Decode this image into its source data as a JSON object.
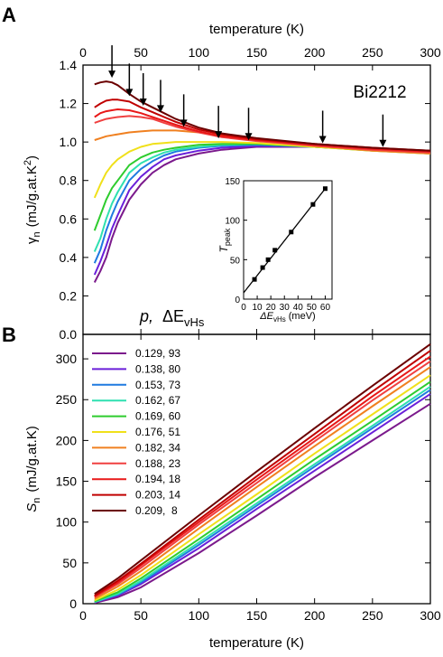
{
  "panels": {
    "a_label": "A",
    "b_label": "B"
  },
  "chart_data": [
    {
      "type": "line",
      "panel": "A",
      "xlabel": "temperature (K)",
      "ylabel_main": "γ",
      "ylabel_sub": "n",
      "ylabel_rest": "(mJ/g.at.K",
      "ylabel_sup": "2",
      "ylabel_end": ")",
      "xlim": [
        0,
        300
      ],
      "ylim": [
        0,
        1.4
      ],
      "xticks": [
        "0",
        "50",
        "100",
        "150",
        "200",
        "250",
        "300"
      ],
      "yticks": [
        "0.0",
        "0.2",
        "0.4",
        "0.6",
        "0.8",
        "1.0",
        "1.2",
        "1.4"
      ],
      "annotation": "Bi2212",
      "legend_title_p": "p,",
      "legend_title_delta": "ΔE",
      "legend_title_sub": "vHs",
      "peak_arrows_x": [
        25,
        40,
        52,
        67,
        87,
        117,
        143,
        207,
        259
      ],
      "series": [
        {
          "p": 0.129,
          "dE": 93,
          "color": "#7b1a8c",
          "x": [
            10,
            15,
            20,
            25,
            30,
            40,
            50,
            60,
            70,
            80,
            100,
            120,
            150,
            200,
            250,
            300
          ],
          "y": [
            0.27,
            0.33,
            0.4,
            0.5,
            0.58,
            0.7,
            0.78,
            0.84,
            0.88,
            0.91,
            0.94,
            0.96,
            0.975,
            0.975,
            0.96,
            0.955
          ]
        },
        {
          "p": 0.138,
          "dE": 80,
          "color": "#6a1fd9",
          "x": [
            10,
            15,
            20,
            25,
            30,
            40,
            50,
            60,
            70,
            80,
            100,
            120,
            150,
            200,
            250,
            300
          ],
          "y": [
            0.31,
            0.38,
            0.46,
            0.55,
            0.62,
            0.75,
            0.82,
            0.87,
            0.91,
            0.93,
            0.955,
            0.97,
            0.98,
            0.975,
            0.96,
            0.95
          ]
        },
        {
          "p": 0.153,
          "dE": 73,
          "color": "#1f7ae0",
          "x": [
            10,
            15,
            20,
            25,
            30,
            40,
            50,
            60,
            70,
            80,
            100,
            120,
            150,
            200,
            250,
            300
          ],
          "y": [
            0.37,
            0.44,
            0.54,
            0.62,
            0.69,
            0.8,
            0.86,
            0.9,
            0.93,
            0.95,
            0.97,
            0.98,
            0.985,
            0.975,
            0.96,
            0.945
          ]
        },
        {
          "p": 0.162,
          "dE": 67,
          "color": "#2ee0b0",
          "x": [
            10,
            15,
            20,
            25,
            30,
            40,
            50,
            60,
            70,
            80,
            100,
            120,
            150,
            200,
            250,
            300
          ],
          "y": [
            0.43,
            0.5,
            0.6,
            0.68,
            0.74,
            0.84,
            0.89,
            0.92,
            0.945,
            0.96,
            0.975,
            0.985,
            0.99,
            0.975,
            0.96,
            0.945
          ]
        },
        {
          "p": 0.169,
          "dE": 60,
          "color": "#2ecc2e",
          "x": [
            10,
            15,
            20,
            25,
            30,
            40,
            50,
            60,
            70,
            80,
            100,
            120,
            150,
            200,
            250,
            300
          ],
          "y": [
            0.54,
            0.62,
            0.7,
            0.76,
            0.8,
            0.88,
            0.92,
            0.945,
            0.96,
            0.97,
            0.985,
            0.99,
            0.99,
            0.975,
            0.955,
            0.94
          ]
        },
        {
          "p": 0.176,
          "dE": 51,
          "color": "#f0e01a",
          "x": [
            10,
            15,
            20,
            25,
            30,
            40,
            50,
            60,
            70,
            80,
            100,
            120,
            150,
            200,
            250,
            300
          ],
          "y": [
            0.71,
            0.78,
            0.84,
            0.88,
            0.91,
            0.95,
            0.975,
            0.99,
            0.995,
            1.0,
            1.0,
            1.0,
            0.995,
            0.975,
            0.955,
            0.94
          ]
        },
        {
          "p": 0.182,
          "dE": 34,
          "color": "#f08020",
          "x": [
            10,
            15,
            20,
            25,
            30,
            40,
            50,
            60,
            70,
            80,
            100,
            120,
            150,
            200,
            250,
            300
          ],
          "y": [
            1.01,
            1.02,
            1.03,
            1.035,
            1.04,
            1.05,
            1.055,
            1.06,
            1.06,
            1.06,
            1.05,
            1.035,
            1.01,
            0.98,
            0.955,
            0.94
          ]
        },
        {
          "p": 0.188,
          "dE": 23,
          "color": "#f04040",
          "x": [
            10,
            15,
            20,
            25,
            30,
            40,
            50,
            60,
            70,
            80,
            100,
            120,
            150,
            200,
            250,
            300
          ],
          "y": [
            1.1,
            1.11,
            1.12,
            1.125,
            1.13,
            1.135,
            1.13,
            1.12,
            1.1,
            1.08,
            1.05,
            1.025,
            1.005,
            0.98,
            0.96,
            0.945
          ]
        },
        {
          "p": 0.194,
          "dE": 18,
          "color": "#e81818",
          "x": [
            10,
            15,
            20,
            25,
            30,
            40,
            50,
            60,
            70,
            80,
            100,
            120,
            150,
            200,
            250,
            300
          ],
          "y": [
            1.13,
            1.15,
            1.16,
            1.165,
            1.17,
            1.165,
            1.15,
            1.13,
            1.11,
            1.09,
            1.055,
            1.03,
            1.01,
            0.985,
            0.965,
            0.95
          ]
        },
        {
          "p": 0.203,
          "dE": 14,
          "color": "#c00000",
          "x": [
            10,
            15,
            20,
            25,
            30,
            40,
            50,
            60,
            70,
            80,
            100,
            120,
            150,
            200,
            250,
            300
          ],
          "y": [
            1.18,
            1.2,
            1.215,
            1.22,
            1.22,
            1.21,
            1.18,
            1.155,
            1.13,
            1.105,
            1.065,
            1.04,
            1.015,
            0.99,
            0.97,
            0.955
          ]
        },
        {
          "p": 0.209,
          "dE": 8,
          "color": "#6b0000",
          "x": [
            10,
            15,
            20,
            25,
            30,
            40,
            50,
            60,
            70,
            80,
            100,
            120,
            150,
            200,
            250,
            300
          ],
          "y": [
            1.3,
            1.31,
            1.315,
            1.31,
            1.295,
            1.25,
            1.21,
            1.18,
            1.15,
            1.12,
            1.075,
            1.045,
            1.02,
            0.99,
            0.97,
            0.955
          ]
        }
      ]
    },
    {
      "type": "scatter",
      "panel": "A-inset",
      "xlabel_main": "ΔE",
      "xlabel_sub": "vHs",
      "xlabel_unit": "(meV)",
      "ylabel_main": "T",
      "ylabel_sub": "peak",
      "xlim": [
        0,
        65
      ],
      "ylim": [
        0,
        150
      ],
      "xticks": [
        "0",
        "10",
        "20",
        "30",
        "40",
        "50",
        "60"
      ],
      "yticks": [
        "0",
        "50",
        "100",
        "150"
      ],
      "points": [
        {
          "x": 8,
          "y": 25
        },
        {
          "x": 14,
          "y": 40
        },
        {
          "x": 18,
          "y": 50
        },
        {
          "x": 23,
          "y": 62
        },
        {
          "x": 35,
          "y": 85
        },
        {
          "x": 51,
          "y": 120
        },
        {
          "x": 60,
          "y": 140
        }
      ],
      "fit_line": [
        [
          0,
          8
        ],
        [
          60,
          140
        ]
      ]
    },
    {
      "type": "line",
      "panel": "B",
      "xlabel": "temperature (K)",
      "ylabel_main": "S",
      "ylabel_sub": "n",
      "ylabel_rest": "(mJ/g.at.K)",
      "xlim": [
        0,
        300
      ],
      "ylim": [
        0,
        330
      ],
      "xticks": [
        "0",
        "50",
        "100",
        "150",
        "200",
        "250",
        "300"
      ],
      "yticks": [
        "0",
        "50",
        "100",
        "150",
        "200",
        "250",
        "300"
      ],
      "legend": [
        {
          "label": "0.129, 93",
          "color": "#7b1a8c"
        },
        {
          "label": "0.138, 80",
          "color": "#6a1fd9"
        },
        {
          "label": "0.153, 73",
          "color": "#1f7ae0"
        },
        {
          "label": "0.162, 67",
          "color": "#2ee0b0"
        },
        {
          "label": "0.169, 60",
          "color": "#2ecc2e"
        },
        {
          "label": "0.176, 51",
          "color": "#f0e01a"
        },
        {
          "label": "0.182, 34",
          "color": "#f08020"
        },
        {
          "label": "0.188, 23",
          "color": "#f04040"
        },
        {
          "label": "0.194, 18",
          "color": "#e81818"
        },
        {
          "label": "0.203, 14",
          "color": "#c00000"
        },
        {
          "label": "0.209,  8",
          "color": "#6b0000"
        }
      ],
      "series": [
        {
          "color": "#7b1a8c",
          "x": [
            10,
            30,
            50,
            100,
            150,
            200,
            250,
            300
          ],
          "y": [
            1,
            8,
            20,
            62,
            108,
            155,
            200,
            245
          ]
        },
        {
          "color": "#6a1fd9",
          "x": [
            10,
            30,
            50,
            100,
            150,
            200,
            250,
            300
          ],
          "y": [
            2,
            10,
            24,
            68,
            116,
            163,
            210,
            257
          ]
        },
        {
          "color": "#1f7ae0",
          "x": [
            10,
            30,
            50,
            100,
            150,
            200,
            250,
            300
          ],
          "y": [
            2,
            11,
            26,
            72,
            120,
            168,
            215,
            262
          ]
        },
        {
          "color": "#2ee0b0",
          "x": [
            10,
            30,
            50,
            100,
            150,
            200,
            250,
            300
          ],
          "y": [
            2,
            12,
            28,
            75,
            123,
            171,
            218,
            266
          ]
        },
        {
          "color": "#2ecc2e",
          "x": [
            10,
            30,
            50,
            100,
            150,
            200,
            250,
            300
          ],
          "y": [
            3,
            14,
            31,
            79,
            128,
            177,
            224,
            272
          ]
        },
        {
          "color": "#f0e01a",
          "x": [
            10,
            30,
            50,
            100,
            150,
            200,
            250,
            300
          ],
          "y": [
            4,
            17,
            35,
            85,
            134,
            184,
            232,
            280
          ]
        },
        {
          "color": "#f08020",
          "x": [
            10,
            30,
            50,
            100,
            150,
            200,
            250,
            300
          ],
          "y": [
            6,
            21,
            40,
            92,
            143,
            193,
            242,
            290
          ]
        },
        {
          "color": "#f04040",
          "x": [
            10,
            30,
            50,
            100,
            150,
            200,
            250,
            300
          ],
          "y": [
            8,
            24,
            44,
            97,
            148,
            199,
            249,
            297
          ]
        },
        {
          "color": "#e81818",
          "x": [
            10,
            30,
            50,
            100,
            150,
            200,
            250,
            300
          ],
          "y": [
            9,
            26,
            47,
            100,
            152,
            203,
            254,
            303
          ]
        },
        {
          "color": "#c00000",
          "x": [
            10,
            30,
            50,
            100,
            150,
            200,
            250,
            300
          ],
          "y": [
            10,
            28,
            49,
            103,
            156,
            208,
            260,
            310
          ]
        },
        {
          "color": "#6b0000",
          "x": [
            10,
            30,
            50,
            100,
            150,
            200,
            250,
            300
          ],
          "y": [
            12,
            31,
            53,
            108,
            162,
            215,
            267,
            318
          ]
        }
      ]
    }
  ]
}
